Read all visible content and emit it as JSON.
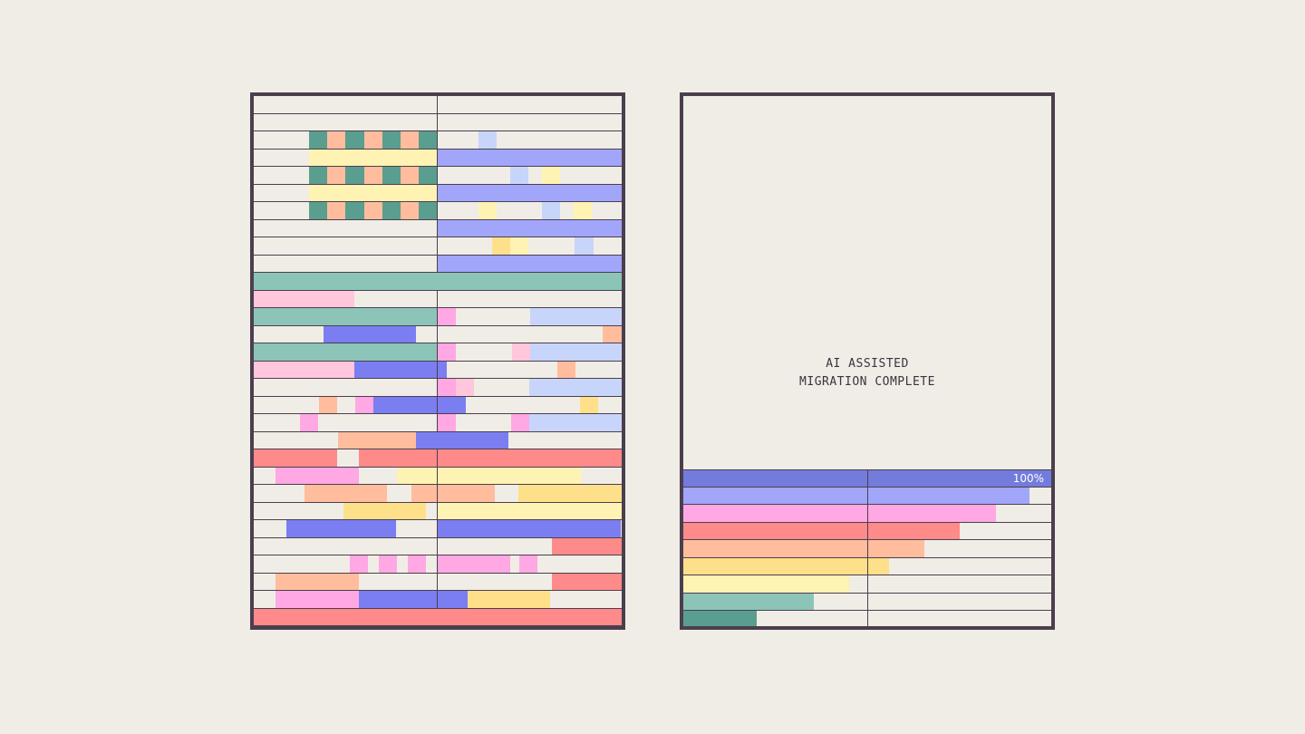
{
  "status": {
    "line1": "AI ASSISTED",
    "line2": "MIGRATION COMPLETE"
  },
  "progress": {
    "percent_label": "100%",
    "bars": [
      {
        "fraction": 1.0,
        "color": "#737cdb"
      },
      {
        "fraction": 0.94,
        "color": "#a2a6fb"
      },
      {
        "fraction": 0.85,
        "color": "#ffa8e3"
      },
      {
        "fraction": 0.75,
        "color": "#ff8a8a"
      },
      {
        "fraction": 0.655,
        "color": "#ffbd9d"
      },
      {
        "fraction": 0.56,
        "color": "#ffe08a"
      },
      {
        "fraction": 0.45,
        "color": "#fff3b3"
      },
      {
        "fraction": 0.355,
        "color": "#8cc4b8"
      },
      {
        "fraction": 0.2,
        "color": "#5a9e90"
      }
    ]
  },
  "colors": {
    "frame": "#4b3f4e",
    "background": "#f0ede6",
    "teal_dark": "#5a9e90",
    "teal_light": "#8cc4b8",
    "peach": "#ffbd9d",
    "cream": "#fff3b3",
    "yellow": "#ffe08a",
    "periwinkle": "#a2a6fb",
    "blue_light": "#c8d5fb",
    "blue": "#7b7ef0",
    "pink_light": "#ffc6dc",
    "pink": "#ffa8e3",
    "coral": "#ff8a8a"
  }
}
